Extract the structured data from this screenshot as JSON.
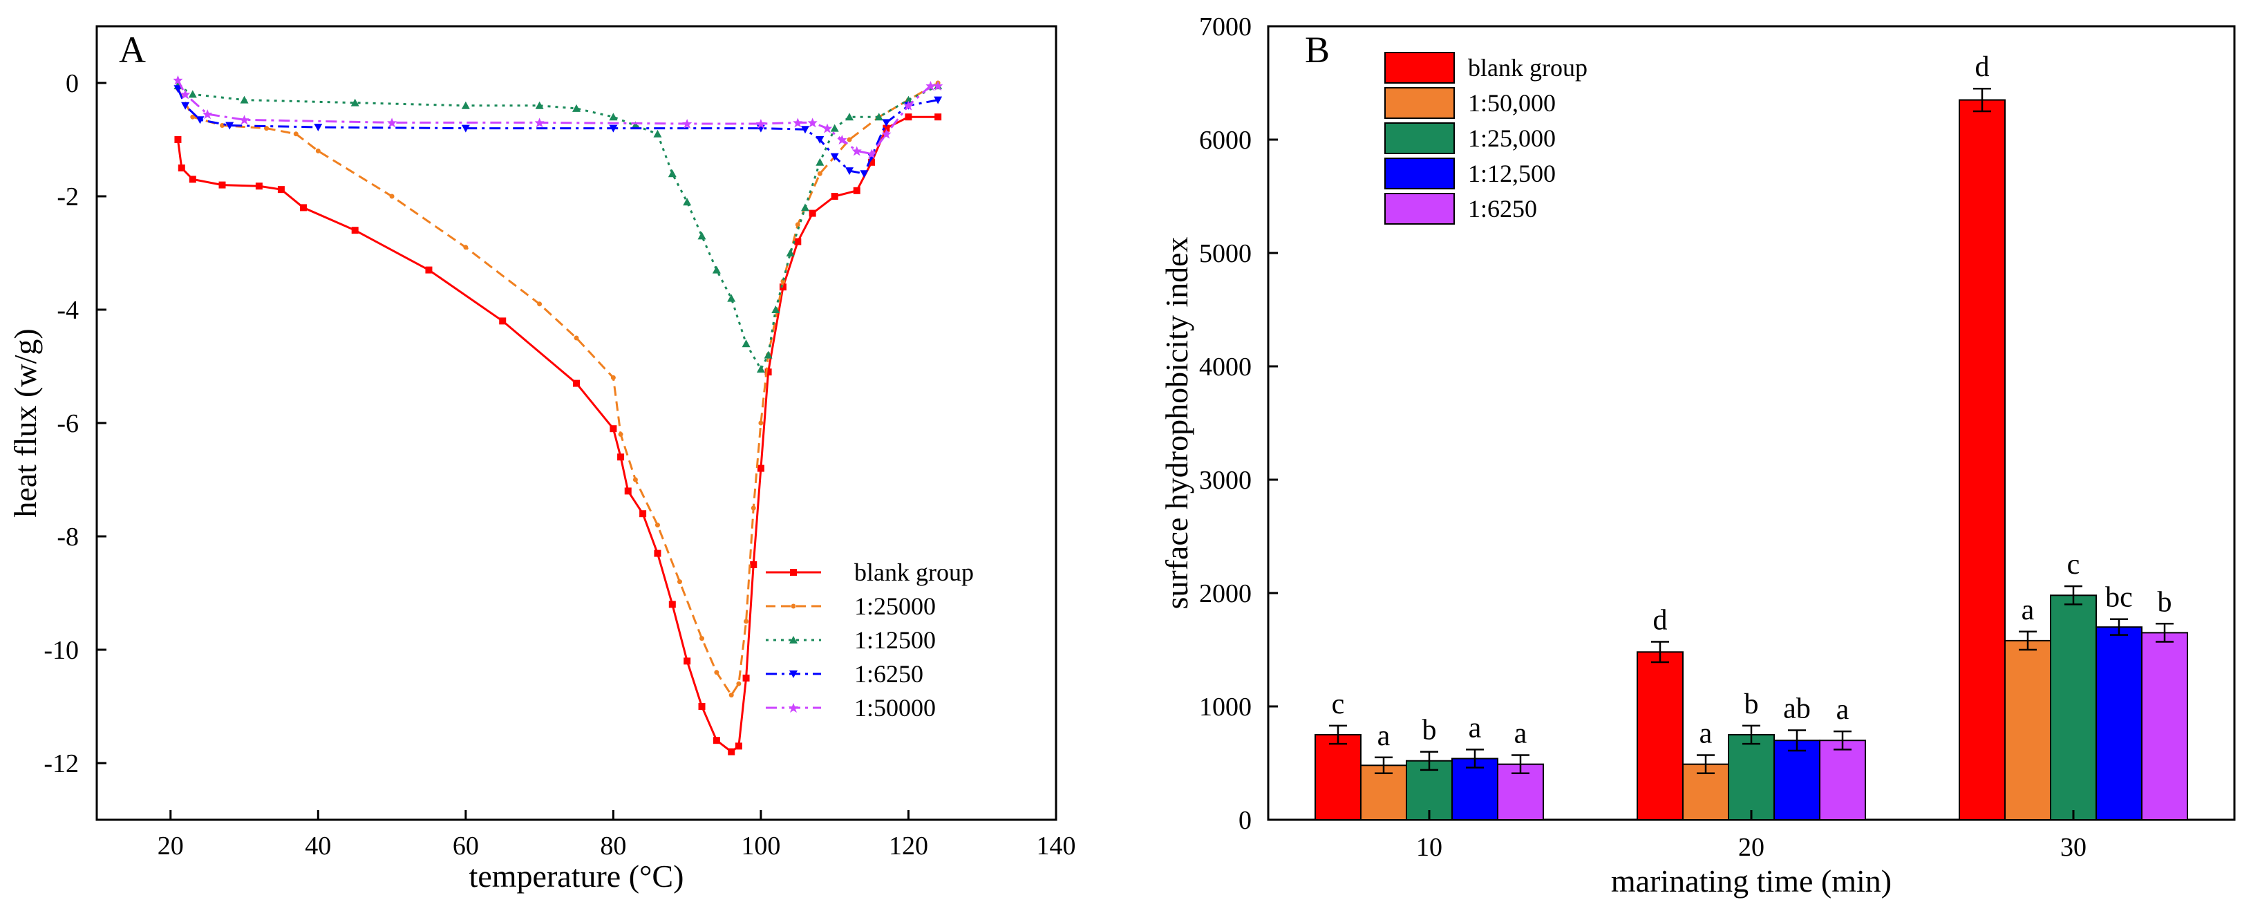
{
  "chart_data": [
    {
      "panel": "A",
      "type": "line",
      "xlabel": "temperature (°C)",
      "ylabel": "heat flux (w/g)",
      "xlim": [
        10,
        140
      ],
      "ylim": [
        -13,
        1
      ],
      "xticks": [
        20,
        40,
        60,
        80,
        100,
        120,
        140
      ],
      "yticks": [
        0,
        -2,
        -4,
        -6,
        -8,
        -10,
        -12
      ],
      "legend_position": "lower-right",
      "series": [
        {
          "name": "blank group",
          "color": "#ff0000",
          "marker": "square",
          "dash": "solid",
          "points": [
            [
              21,
              -1
            ],
            [
              21.5,
              -1.5
            ],
            [
              23,
              -1.7
            ],
            [
              27,
              -1.8
            ],
            [
              32,
              -1.82
            ],
            [
              35,
              -1.88
            ],
            [
              38,
              -2.2
            ],
            [
              45,
              -2.6
            ],
            [
              55,
              -3.3
            ],
            [
              65,
              -4.2
            ],
            [
              75,
              -5.3
            ],
            [
              80,
              -6.1
            ],
            [
              81,
              -6.6
            ],
            [
              82,
              -7.2
            ],
            [
              84,
              -7.6
            ],
            [
              86,
              -8.3
            ],
            [
              88,
              -9.2
            ],
            [
              90,
              -10.2
            ],
            [
              92,
              -11.0
            ],
            [
              94,
              -11.6
            ],
            [
              96,
              -11.8
            ],
            [
              97,
              -11.7
            ],
            [
              98,
              -10.5
            ],
            [
              99,
              -8.5
            ],
            [
              100,
              -6.8
            ],
            [
              101,
              -5.1
            ],
            [
              103,
              -3.6
            ],
            [
              105,
              -2.8
            ],
            [
              107,
              -2.3
            ],
            [
              110,
              -2.0
            ],
            [
              113,
              -1.9
            ],
            [
              115,
              -1.4
            ],
            [
              117,
              -0.8
            ],
            [
              120,
              -0.6
            ],
            [
              124,
              -0.6
            ]
          ]
        },
        {
          "name": "1:25000",
          "color": "#f08020",
          "marker": "dot",
          "dash": "dash",
          "points": [
            [
              21,
              -0.1
            ],
            [
              23,
              -0.6
            ],
            [
              27,
              -0.75
            ],
            [
              33,
              -0.8
            ],
            [
              37,
              -0.9
            ],
            [
              40,
              -1.2
            ],
            [
              50,
              -2.0
            ],
            [
              60,
              -2.9
            ],
            [
              70,
              -3.9
            ],
            [
              75,
              -4.5
            ],
            [
              80,
              -5.2
            ],
            [
              81,
              -6.2
            ],
            [
              83,
              -7.0
            ],
            [
              86,
              -7.8
            ],
            [
              89,
              -8.8
            ],
            [
              92,
              -9.8
            ],
            [
              94,
              -10.4
            ],
            [
              96,
              -10.8
            ],
            [
              97,
              -10.6
            ],
            [
              98,
              -9.5
            ],
            [
              99,
              -7.5
            ],
            [
              100,
              -6.0
            ],
            [
              101,
              -4.8
            ],
            [
              103,
              -3.5
            ],
            [
              105,
              -2.5
            ],
            [
              108,
              -1.6
            ],
            [
              112,
              -1.0
            ],
            [
              116,
              -0.6
            ],
            [
              120,
              -0.3
            ],
            [
              124,
              0
            ]
          ]
        },
        {
          "name": "1:12500",
          "color": "#1a8a5a",
          "marker": "triangle",
          "dash": "dot",
          "points": [
            [
              21,
              -0.05
            ],
            [
              23,
              -0.2
            ],
            [
              30,
              -0.3
            ],
            [
              45,
              -0.35
            ],
            [
              60,
              -0.4
            ],
            [
              70,
              -0.4
            ],
            [
              75,
              -0.45
            ],
            [
              80,
              -0.6
            ],
            [
              83,
              -0.75
            ],
            [
              86,
              -0.9
            ],
            [
              88,
              -1.6
            ],
            [
              90,
              -2.1
            ],
            [
              92,
              -2.7
            ],
            [
              94,
              -3.3
            ],
            [
              96,
              -3.8
            ],
            [
              98,
              -4.6
            ],
            [
              100,
              -5.05
            ],
            [
              101,
              -4.8
            ],
            [
              102,
              -4.0
            ],
            [
              104,
              -3.0
            ],
            [
              106,
              -2.2
            ],
            [
              108,
              -1.4
            ],
            [
              110,
              -0.8
            ],
            [
              112,
              -0.6
            ],
            [
              116,
              -0.6
            ],
            [
              120,
              -0.3
            ],
            [
              124,
              -0.05
            ]
          ]
        },
        {
          "name": "1:6250",
          "color": "#0000ff",
          "marker": "down-triangle",
          "dash": "dashdot",
          "points": [
            [
              21,
              -0.1
            ],
            [
              22,
              -0.4
            ],
            [
              24,
              -0.65
            ],
            [
              28,
              -0.75
            ],
            [
              40,
              -0.78
            ],
            [
              60,
              -0.8
            ],
            [
              80,
              -0.8
            ],
            [
              100,
              -0.8
            ],
            [
              106,
              -0.82
            ],
            [
              108,
              -1.0
            ],
            [
              110,
              -1.3
            ],
            [
              112,
              -1.55
            ],
            [
              114,
              -1.6
            ],
            [
              115,
              -1.3
            ],
            [
              117,
              -0.7
            ],
            [
              120,
              -0.4
            ],
            [
              124,
              -0.3
            ]
          ]
        },
        {
          "name": "1:50000",
          "color": "#cc44ff",
          "marker": "star",
          "dash": "dashdot",
          "points": [
            [
              21,
              0.05
            ],
            [
              22,
              -0.2
            ],
            [
              25,
              -0.55
            ],
            [
              30,
              -0.65
            ],
            [
              50,
              -0.7
            ],
            [
              70,
              -0.7
            ],
            [
              90,
              -0.72
            ],
            [
              100,
              -0.72
            ],
            [
              105,
              -0.7
            ],
            [
              107,
              -0.7
            ],
            [
              109,
              -0.8
            ],
            [
              111,
              -1.0
            ],
            [
              113,
              -1.2
            ],
            [
              115,
              -1.25
            ],
            [
              117,
              -0.9
            ],
            [
              120,
              -0.4
            ],
            [
              123,
              -0.05
            ],
            [
              124,
              -0.05
            ]
          ]
        }
      ]
    },
    {
      "panel": "B",
      "type": "bar",
      "xlabel": "marinating time (min)",
      "ylabel": "surface hydrophobicity index",
      "ylim": [
        0,
        7000
      ],
      "yticks": [
        0,
        1000,
        2000,
        3000,
        4000,
        5000,
        6000,
        7000
      ],
      "categories": [
        "10",
        "20",
        "30"
      ],
      "legend_position": "top-left",
      "series": [
        {
          "name": "blank group",
          "color": "#ff0000",
          "values": [
            750,
            1480,
            6350
          ],
          "errors": [
            80,
            90,
            100
          ],
          "labels": [
            "c",
            "d",
            "d"
          ]
        },
        {
          "name": "1:50,000",
          "color": "#f08030",
          "values": [
            480,
            490,
            1580
          ],
          "errors": [
            70,
            80,
            80
          ],
          "labels": [
            "a",
            "a",
            "a"
          ]
        },
        {
          "name": "1:25,000",
          "color": "#1a8a5a",
          "values": [
            520,
            750,
            1980
          ],
          "errors": [
            80,
            80,
            80
          ],
          "labels": [
            "b",
            "b",
            "c"
          ]
        },
        {
          "name": "1:12,500",
          "color": "#0000ff",
          "values": [
            540,
            700,
            1700
          ],
          "errors": [
            80,
            90,
            70
          ],
          "labels": [
            "a",
            "ab",
            "bc"
          ]
        },
        {
          "name": "1:6250",
          "color": "#cc44ff",
          "values": [
            490,
            700,
            1650
          ],
          "errors": [
            80,
            80,
            80
          ],
          "labels": [
            "a",
            "a",
            "b"
          ]
        }
      ]
    }
  ]
}
